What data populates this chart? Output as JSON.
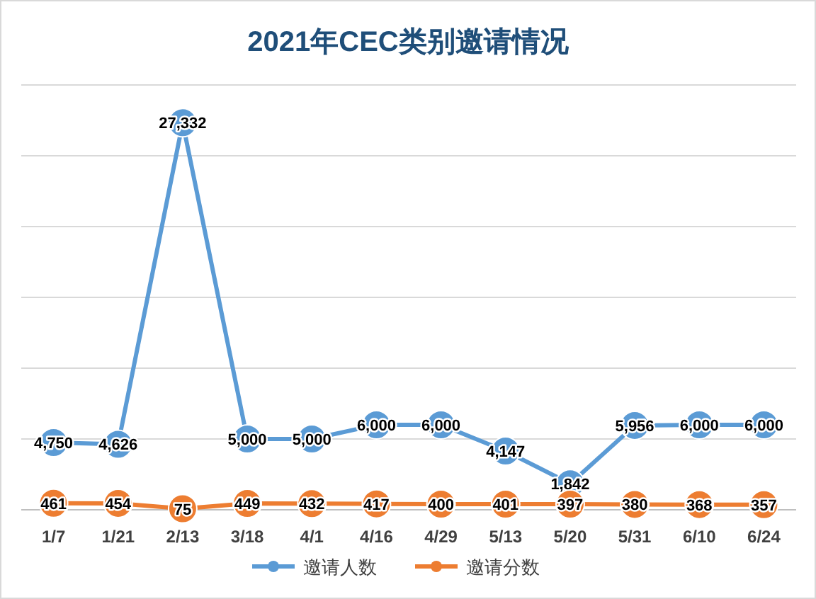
{
  "chart_data": {
    "type": "line",
    "title": "2021年CEC类别邀请情况",
    "categories": [
      "1/7",
      "1/21",
      "2/13",
      "3/18",
      "4/1",
      "4/16",
      "4/29",
      "5/13",
      "5/20",
      "5/31",
      "6/10",
      "6/24"
    ],
    "series": [
      {
        "name": "邀请人数",
        "color": "#5b9bd5",
        "values": [
          4750,
          4626,
          27332,
          5000,
          5000,
          6000,
          6000,
          4147,
          1842,
          5956,
          6000,
          6000
        ],
        "value_labels": [
          "4,750",
          "4,626",
          "27,332",
          "5,000",
          "5,000",
          "6,000",
          "6,000",
          "4,147",
          "1,842",
          "5,956",
          "6,000",
          "6,000"
        ]
      },
      {
        "name": "邀请分数",
        "color": "#ed7d31",
        "values": [
          461,
          454,
          75,
          449,
          432,
          417,
          400,
          401,
          397,
          380,
          368,
          357
        ],
        "value_labels": [
          "461",
          "454",
          "75",
          "449",
          "432",
          "417",
          "400",
          "401",
          "397",
          "380",
          "368",
          "357"
        ]
      }
    ],
    "ylim": [
      0,
      30000
    ],
    "yticks": [
      {
        "value": 0,
        "label": null
      },
      {
        "value": 5000,
        "label": null
      },
      {
        "value": 10000,
        "label": null
      },
      {
        "value": 15000,
        "label": null
      },
      {
        "value": 20000,
        "label": null
      },
      {
        "value": 25000,
        "label": null
      },
      {
        "value": 30000,
        "label": null
      }
    ],
    "grid": "y",
    "legend": "bottom",
    "marker": "circle"
  }
}
